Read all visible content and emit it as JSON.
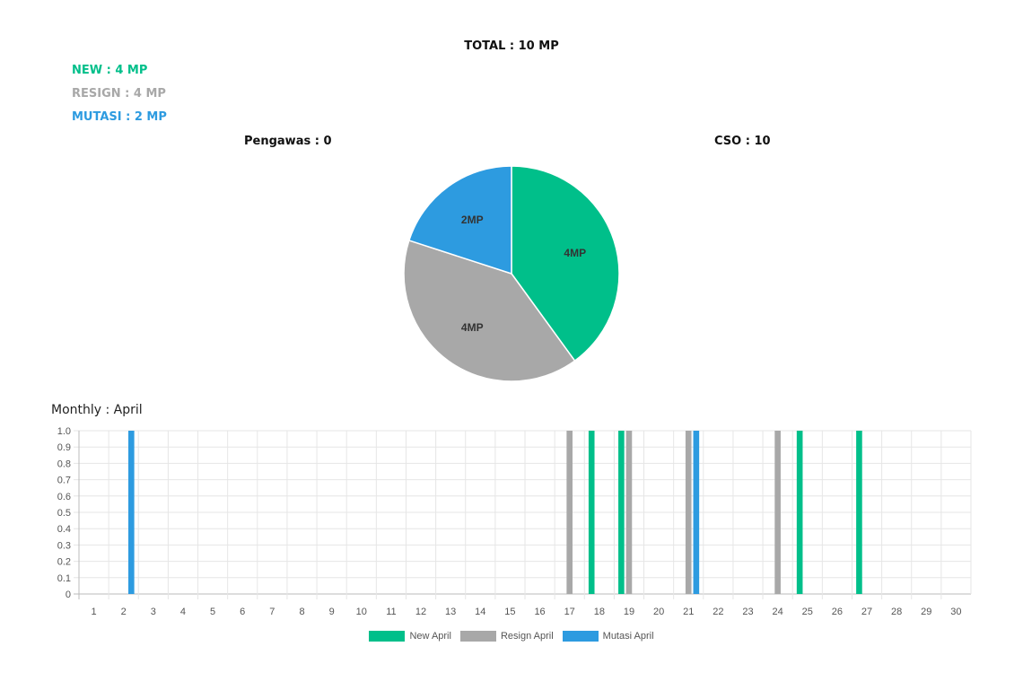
{
  "summary": {
    "total": "TOTAL : 10 MP",
    "new": "NEW : 4 MP",
    "resign": "RESIGN : 4 MP",
    "mutasi": "MUTASI : 2 MP",
    "pengawas": "Pengawas : 0",
    "cso": "CSO : 10"
  },
  "monthly_label": "Monthly : April",
  "colors": {
    "new": "#00bf8a",
    "resign": "#a8a8a8",
    "mutasi": "#2d9be0"
  },
  "chart_data": [
    {
      "type": "pie",
      "slices": [
        {
          "name": "New",
          "value": 4,
          "label": "4MP",
          "color": "#00bf8a"
        },
        {
          "name": "Resign",
          "value": 4,
          "label": "4MP",
          "color": "#a8a8a8"
        },
        {
          "name": "Mutasi",
          "value": 2,
          "label": "2MP",
          "color": "#2d9be0"
        }
      ]
    },
    {
      "type": "bar",
      "categories": [
        "1",
        "2",
        "3",
        "4",
        "5",
        "6",
        "7",
        "8",
        "9",
        "10",
        "11",
        "12",
        "13",
        "14",
        "15",
        "16",
        "17",
        "18",
        "19",
        "20",
        "21",
        "22",
        "23",
        "24",
        "25",
        "26",
        "27",
        "28",
        "29",
        "30"
      ],
      "series": [
        {
          "name": "New April",
          "color": "#00bf8a",
          "values": [
            0,
            0,
            0,
            0,
            0,
            0,
            0,
            0,
            0,
            0,
            0,
            0,
            0,
            0,
            0,
            0,
            0,
            1,
            1,
            0,
            0,
            0,
            0,
            0,
            1,
            0,
            1,
            0,
            0,
            0
          ]
        },
        {
          "name": "Resign April",
          "color": "#a8a8a8",
          "values": [
            0,
            0,
            0,
            0,
            0,
            0,
            0,
            0,
            0,
            0,
            0,
            0,
            0,
            0,
            0,
            0,
            1,
            0,
            1,
            0,
            1,
            0,
            0,
            1,
            0,
            0,
            0,
            0,
            0,
            0
          ]
        },
        {
          "name": "Mutasi April",
          "color": "#2d9be0",
          "values": [
            0,
            1,
            0,
            0,
            0,
            0,
            0,
            0,
            0,
            0,
            0,
            0,
            0,
            0,
            0,
            0,
            0,
            0,
            0,
            0,
            1,
            0,
            0,
            0,
            0,
            0,
            0,
            0,
            0,
            0
          ]
        }
      ],
      "yticks": [
        "0",
        "0.1",
        "0.2",
        "0.3",
        "0.4",
        "0.5",
        "0.6",
        "0.7",
        "0.8",
        "0.9",
        "1.0"
      ],
      "ylim": [
        0,
        1
      ],
      "grid": true,
      "legend_position": "bottom"
    }
  ]
}
